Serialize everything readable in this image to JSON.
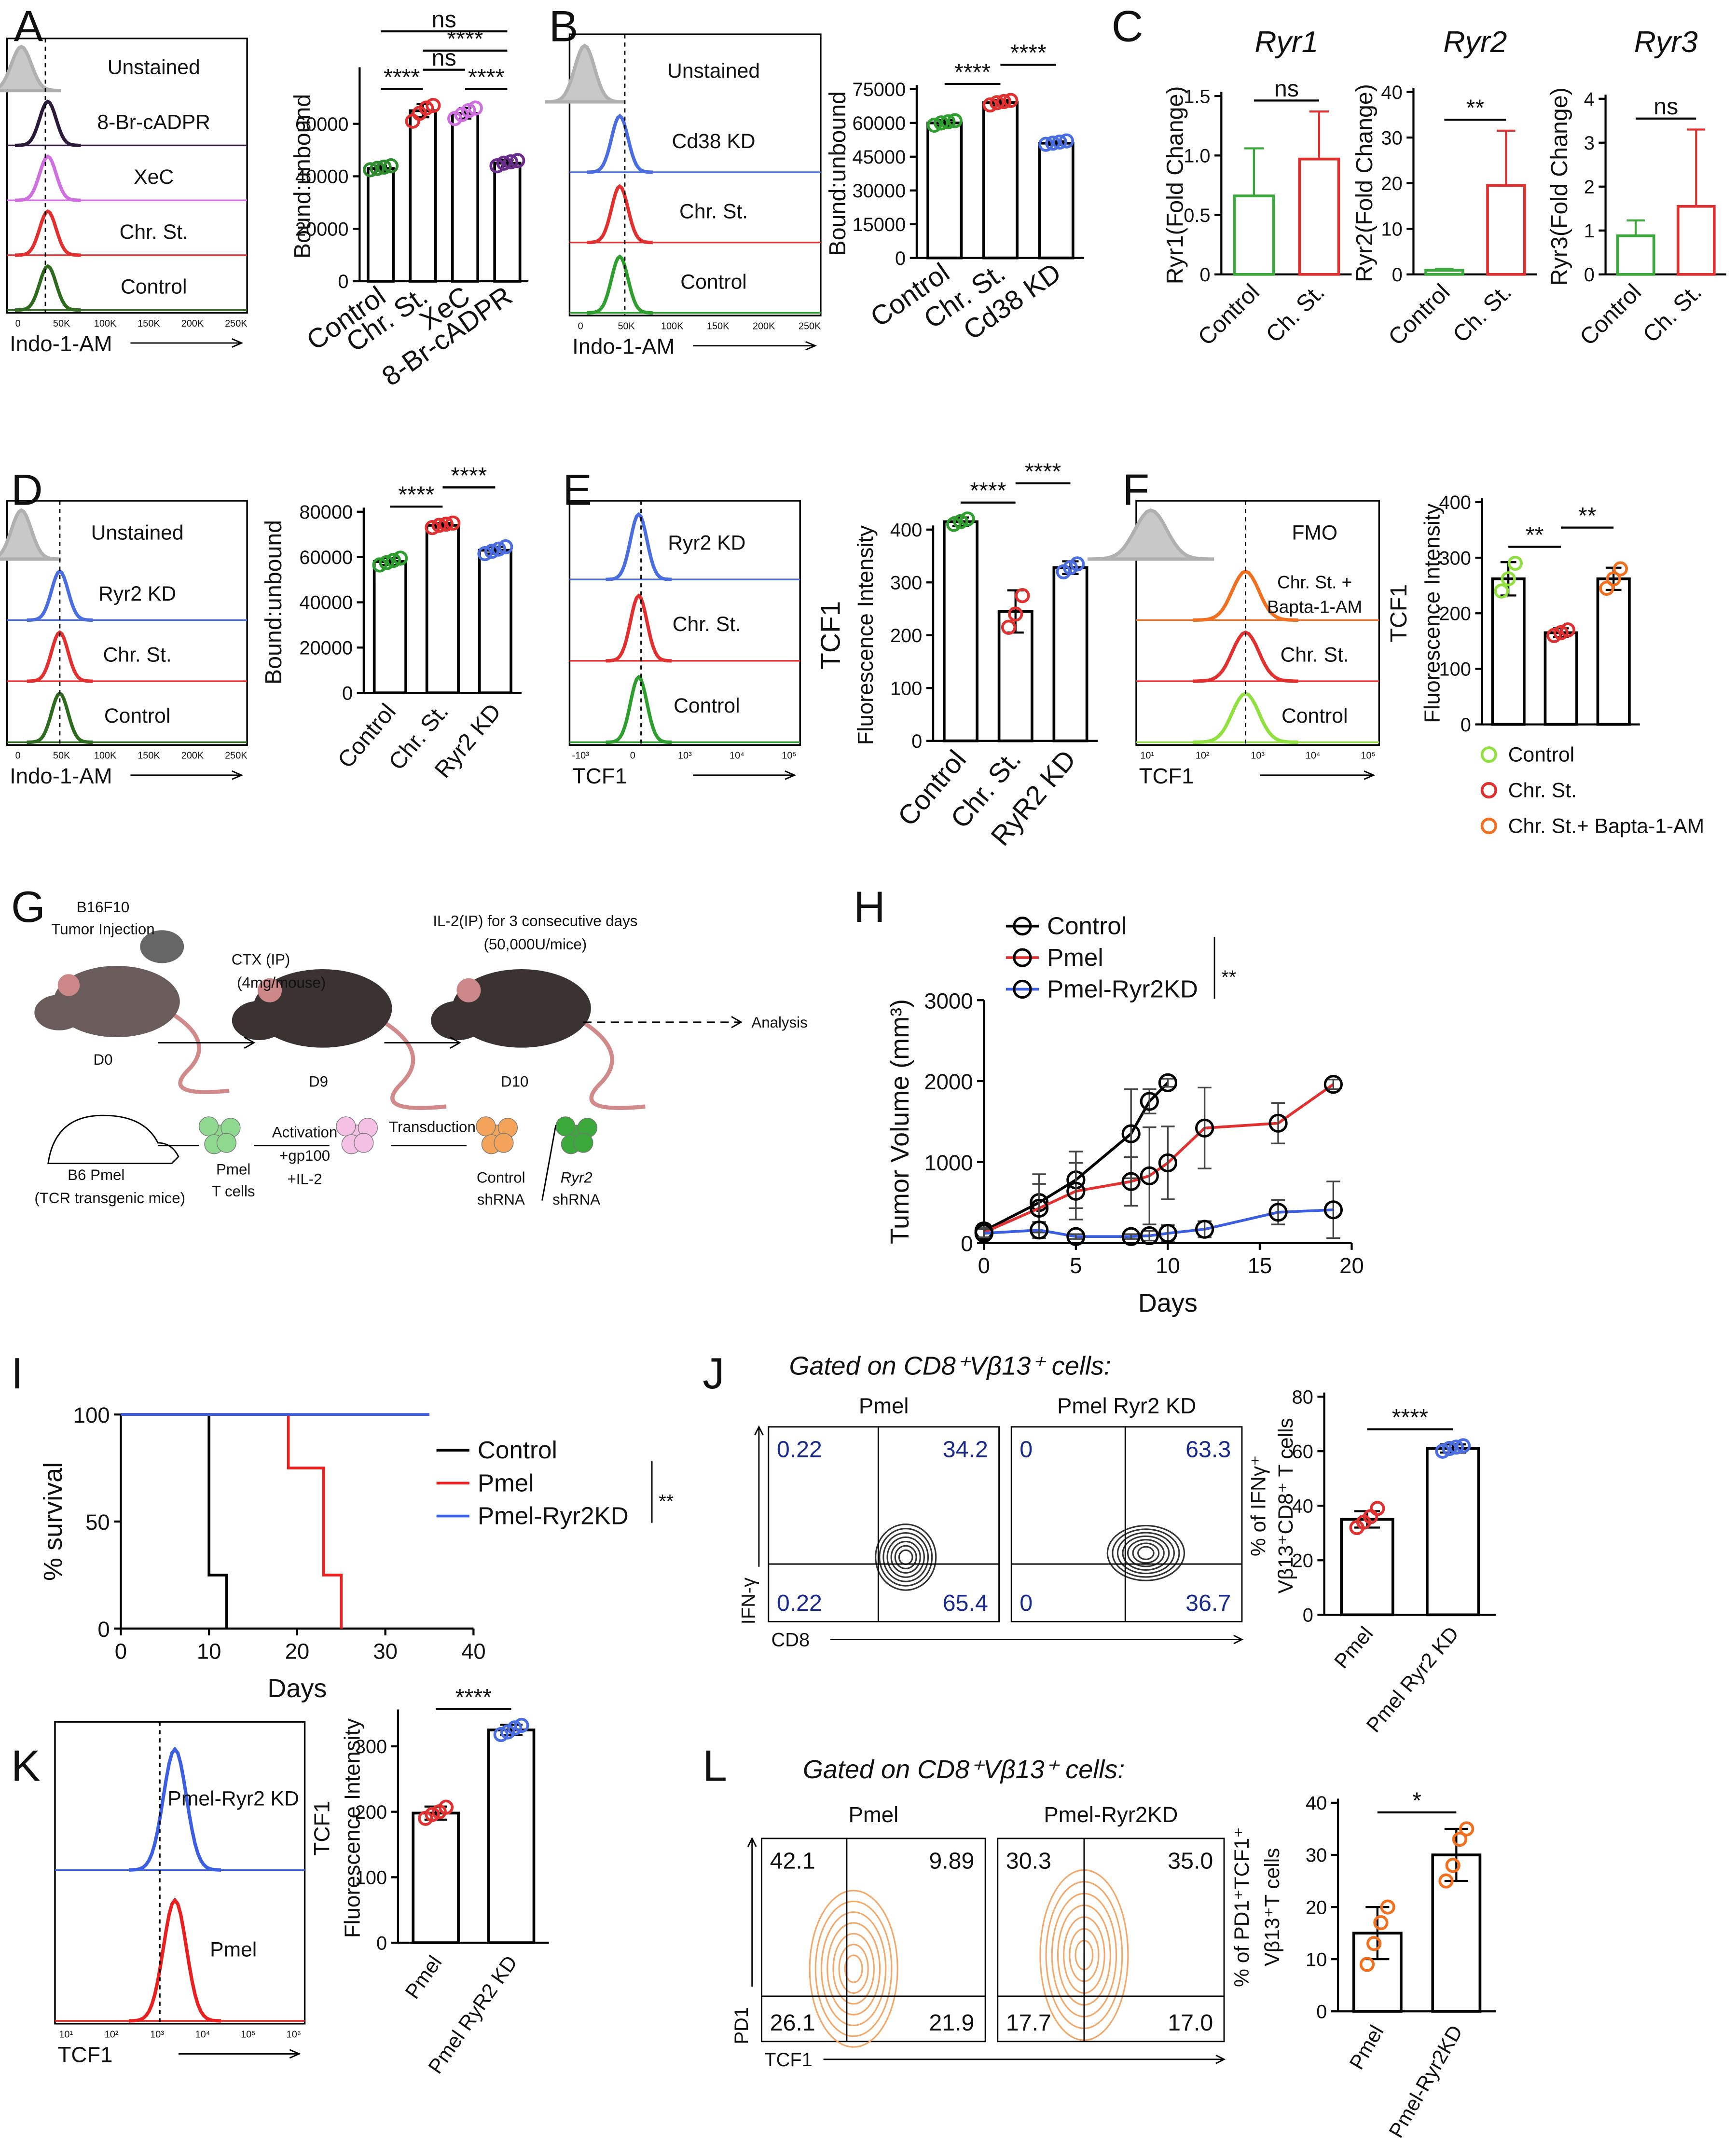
{
  "chart_data": [
    {
      "type": "flow-histogram",
      "panel": "A",
      "labels": [
        "Unstained",
        "8-Br-cADPR",
        "XeC",
        "Chr. St.",
        "Control"
      ],
      "colors": [
        "#b0b0b0",
        "#2b1a3a",
        "#d070e0",
        "#e03030",
        "#2e6b1e"
      ],
      "first_filled": true,
      "xlabel": "Indo-1-AM",
      "xtick_labels": [
        "0",
        "50K",
        "100K",
        "150K",
        "200K",
        "250K"
      ]
    },
    {
      "type": "bar",
      "ylabel": "Bound:unbound",
      "categories": [
        "Control",
        "Chr. St.",
        "XeC",
        "8-Br-cADPR"
      ],
      "values": [
        43000,
        65000,
        64000,
        45000
      ],
      "errors": [
        1000,
        2500,
        2000,
        1200
      ],
      "points": [
        [
          42500,
          43000,
          43500,
          44000
        ],
        [
          61000,
          64000,
          66000,
          67000
        ],
        [
          62000,
          63500,
          65000,
          66000
        ],
        [
          44000,
          45000,
          45500,
          46000
        ]
      ],
      "colors": [
        "#2e8b2e",
        "#e03030",
        "#d070e0",
        "#6a2c8a"
      ],
      "bar_edge": "#000000",
      "ylim": [
        0,
        80000
      ],
      "yticks": [
        0,
        20000,
        40000,
        60000
      ],
      "significance": [
        {
          "label": "****",
          "pair": [
            0,
            1
          ]
        },
        {
          "label": "****",
          "pair": [
            2,
            3
          ]
        },
        {
          "label": "ns",
          "pair": [
            1,
            2
          ]
        },
        {
          "label": "****",
          "pair": [
            1,
            3
          ]
        },
        {
          "label": "ns",
          "pair": [
            0,
            3
          ]
        }
      ]
    },
    {
      "type": "flow-histogram",
      "panel": "B",
      "labels": [
        "Unstained",
        "Cd38 KD",
        "Chr. St.",
        "Control"
      ],
      "colors": [
        "#b0b0b0",
        "#4a6ee0",
        "#e03030",
        "#2e9e2e"
      ],
      "first_filled": true,
      "xlabel": "Indo-1-AM",
      "xtick_labels": [
        "0",
        "50K",
        "100K",
        "150K",
        "200K",
        "250K"
      ]
    },
    {
      "type": "bar",
      "ylabel": "Bound:unbound",
      "categories": [
        "Control",
        "Chr. St.",
        "Cd38 KD"
      ],
      "values": [
        60000,
        69000,
        51000
      ],
      "errors": [
        1200,
        1200,
        800
      ],
      "points": [
        [
          59000,
          60000,
          60500,
          61000
        ],
        [
          68000,
          69000,
          69500,
          70000
        ],
        [
          50500,
          51000,
          51500,
          52000
        ]
      ],
      "colors": [
        "#2e9e2e",
        "#e03030",
        "#4a6ee0"
      ],
      "bar_edge": "#000000",
      "ylim": [
        0,
        75000
      ],
      "yticks": [
        0,
        15000,
        30000,
        45000,
        60000,
        75000
      ],
      "significance": [
        {
          "label": "****",
          "pair": [
            0,
            1
          ]
        },
        {
          "label": "****",
          "pair": [
            1,
            2
          ]
        }
      ]
    },
    {
      "type": "bar",
      "panel": "C",
      "title": "Ryr1",
      "ylabel": "Ryr1(Fold Change)",
      "categories": [
        "Control",
        "Ch. St."
      ],
      "values": [
        0.66,
        0.97
      ],
      "errors": [
        0.4,
        0.4
      ],
      "colors": [
        "#3aa83a",
        "#e03030"
      ],
      "error_bars": "upper",
      "ylim": [
        0,
        1.5
      ],
      "yticks": [
        0,
        0.5,
        {
          "value": 1,
          "label": "1.0"
        },
        1.5
      ],
      "significance": [
        {
          "label": "ns",
          "pair": [
            0,
            1
          ]
        }
      ]
    },
    {
      "type": "bar",
      "title": "Ryr2",
      "ylabel": "Ryr2(Fold Change)",
      "categories": [
        "Control",
        "Ch. St."
      ],
      "values": [
        0.9,
        19.5
      ],
      "errors": [
        0.3,
        12
      ],
      "colors": [
        "#3aa83a",
        "#e03030"
      ],
      "error_bars": "upper",
      "ylim": [
        0,
        40
      ],
      "yticks": [
        0,
        10,
        20,
        30,
        40
      ],
      "significance": [
        {
          "label": "**",
          "pair": [
            0,
            1
          ]
        }
      ]
    },
    {
      "type": "bar",
      "title": "Ryr3",
      "ylabel": "Ryr3(Fold Change)",
      "categories": [
        "Control",
        "Ch. St."
      ],
      "values": [
        0.88,
        1.55
      ],
      "errors": [
        0.35,
        1.75
      ],
      "colors": [
        "#3aa83a",
        "#e03030"
      ],
      "error_bars": "upper",
      "ylim": [
        0,
        4
      ],
      "yticks": [
        0,
        1,
        2,
        3,
        4
      ],
      "significance": [
        {
          "label": "ns",
          "pair": [
            0,
            1
          ]
        }
      ]
    },
    {
      "type": "flow-histogram",
      "panel": "D",
      "labels": [
        "Unstained",
        "Ryr2 KD",
        "Chr. St.",
        "Control"
      ],
      "colors": [
        "#b0b0b0",
        "#4a6ee0",
        "#e03030",
        "#2e6b1e"
      ],
      "first_filled": true,
      "xlabel": "Indo-1-AM",
      "xtick_labels": [
        "0",
        "50K",
        "100K",
        "150K",
        "200K",
        "250K"
      ]
    },
    {
      "type": "bar",
      "ylabel": "Bound:unbound",
      "categories": [
        "Control",
        "Chr. St.",
        "Ryr2 KD"
      ],
      "values": [
        58000,
        74000,
        63000
      ],
      "errors": [
        1500,
        1000,
        1500
      ],
      "points": [
        [
          56500,
          57500,
          58500,
          59500
        ],
        [
          73000,
          74000,
          74500,
          75000
        ],
        [
          61500,
          62500,
          63500,
          64500
        ]
      ],
      "colors": [
        "#2e9e2e",
        "#e03030",
        "#4a6ee0"
      ],
      "bar_edge": "#000000",
      "ylim": [
        0,
        80000
      ],
      "yticks": [
        0,
        20000,
        40000,
        60000,
        80000
      ],
      "significance": [
        {
          "label": "****",
          "pair": [
            0,
            1
          ]
        },
        {
          "label": "****",
          "pair": [
            1,
            2
          ]
        }
      ]
    },
    {
      "type": "flow-histogram",
      "panel": "E",
      "labels": [
        "Ryr2 KD",
        "Chr. St.",
        "Control"
      ],
      "colors": [
        "#4a6ee0",
        "#e03030",
        "#2e9e2e"
      ],
      "first_filled": false,
      "xlabel": "TCF1",
      "xtick_labels": [
        "-10³",
        "0",
        "10³",
        "10⁴",
        "10⁵"
      ]
    },
    {
      "type": "bar",
      "ylabel": [
        "TCF1",
        "Fluorescence Intensity"
      ],
      "categories": [
        "Control",
        "Chr. St.",
        "RyR2 KD"
      ],
      "values": [
        415,
        245,
        328
      ],
      "errors": [
        8,
        40,
        12
      ],
      "points": [
        [
          410,
          415,
          420
        ],
        [
          215,
          240,
          275
        ],
        [
          320,
          328,
          335
        ]
      ],
      "colors": [
        "#2e9e2e",
        "#e03030",
        "#4a6ee0"
      ],
      "bar_edge": "#000000",
      "ylim": [
        0,
        400
      ],
      "yticks": [
        0,
        100,
        200,
        300,
        400
      ],
      "significance": [
        {
          "label": "****",
          "pair": [
            0,
            1
          ]
        },
        {
          "label": "****",
          "pair": [
            1,
            2
          ]
        }
      ]
    },
    {
      "type": "flow-histogram",
      "panel": "F",
      "labels": [
        "FMO",
        [
          "Chr. St. +",
          "Bapta-1-AM"
        ],
        "Chr. St.",
        "Control"
      ],
      "colors": [
        "#b0b0b0",
        "#f07020",
        "#e03030",
        "#90e040"
      ],
      "first_filled": true,
      "xlabel": "TCF1",
      "xtick_labels": [
        "10¹",
        "10²",
        "10³",
        "10⁴",
        "10⁵"
      ]
    },
    {
      "type": "bar",
      "ylabel": [
        "TCF1",
        "Fluorescence Intensity"
      ],
      "legend": [
        "Control",
        "Chr. St.",
        "Chr. St.+ Bapta-1-AM"
      ],
      "values": [
        262,
        165,
        262
      ],
      "errors": [
        30,
        8,
        20
      ],
      "points": [
        [
          240,
          262,
          290
        ],
        [
          160,
          165,
          170
        ],
        [
          245,
          262,
          280
        ]
      ],
      "colors": [
        "#90e040",
        "#e03030",
        "#f07020"
      ],
      "bar_edge": "#000000",
      "ylim": [
        0,
        400
      ],
      "yticks": [
        0,
        100,
        200,
        300,
        400
      ],
      "significance": [
        {
          "label": "**",
          "pair": [
            0,
            1
          ]
        },
        {
          "label": "**",
          "pair": [
            1,
            2
          ]
        }
      ]
    },
    {
      "type": "line",
      "panel": "H",
      "ylabel": "Tumor Volume (mm³)",
      "xlabel": "Days",
      "xlim": [
        0,
        20
      ],
      "xticks": [
        0,
        5,
        10,
        15,
        20
      ],
      "ylim": [
        0,
        3000
      ],
      "yticks": [
        0,
        1000,
        2000,
        3000
      ],
      "legend_note": "**",
      "series": [
        {
          "name": "Control",
          "color": "#000000",
          "x": [
            0,
            3,
            5,
            8,
            9,
            10
          ],
          "values": [
            150,
            500,
            780,
            1350,
            1750,
            1980
          ],
          "errors": [
            80,
            350,
            350,
            550,
            150,
            50
          ]
        },
        {
          "name": "Pmel",
          "color": "#e03030",
          "x": [
            0,
            3,
            5,
            8,
            9,
            10,
            12,
            16,
            19
          ],
          "values": [
            130,
            430,
            640,
            760,
            830,
            990,
            1420,
            1480,
            1960
          ],
          "errors": [
            60,
            300,
            350,
            300,
            600,
            450,
            500,
            250,
            60
          ]
        },
        {
          "name": "Pmel-Ryr2KD",
          "color": "#3b5fe0",
          "x": [
            0,
            3,
            5,
            8,
            9,
            10,
            12,
            16,
            19
          ],
          "values": [
            120,
            160,
            80,
            80,
            90,
            120,
            170,
            380,
            410
          ],
          "errors": [
            50,
            100,
            30,
            30,
            60,
            100,
            100,
            150,
            350
          ]
        }
      ]
    },
    {
      "type": "survival",
      "panel": "I",
      "ylabel": "% survival",
      "xlabel": "Days",
      "xlim": [
        0,
        40
      ],
      "xticks": [
        0,
        10,
        20,
        30,
        40
      ],
      "ylim": [
        0,
        100
      ],
      "yticks": [
        0,
        50,
        100
      ],
      "legend_note": "**",
      "series": [
        {
          "name": "Control",
          "color": "#000000",
          "x": [
            0,
            10,
            12
          ],
          "values": [
            100,
            25,
            0
          ]
        },
        {
          "name": "Pmel",
          "color": "#e82020",
          "x": [
            0,
            19,
            23,
            25
          ],
          "values": [
            100,
            75,
            25,
            0
          ]
        },
        {
          "name": "Pmel-Ryr2KD",
          "color": "#3b5fe0",
          "x": [
            0,
            35
          ],
          "values": [
            100,
            100
          ]
        }
      ]
    },
    {
      "type": "flow-quadrant",
      "panel": "J",
      "heading": "Gated on CD8⁺Vβ13⁺ cells:",
      "ylabel": "IFN-γ",
      "xlabel": "CD8",
      "color": "#333333",
      "quadrant_color": "#1a2a8a",
      "plots": [
        {
          "title": "Pmel",
          "quadrants": [
            "0.22",
            "34.2",
            "0.22",
            "65.4"
          ]
        },
        {
          "title": "Pmel Ryr2 KD",
          "quadrants": [
            "0",
            "63.3",
            "0",
            "36.7"
          ]
        }
      ]
    },
    {
      "type": "bar",
      "ylabel": [
        "% of IFNγ⁺",
        "Vβ13⁺CD8⁺ T cells"
      ],
      "categories": [
        "Pmel",
        "Pmel Ryr2 KD"
      ],
      "values": [
        35,
        61
      ],
      "errors": [
        3,
        1.5
      ],
      "points": [
        [
          32,
          34,
          36,
          39
        ],
        [
          60,
          61,
          61.5,
          62
        ]
      ],
      "colors": [
        "#e03030",
        "#4a6ee0"
      ],
      "bar_edge": "#000000",
      "ylim": [
        0,
        80
      ],
      "yticks": [
        0,
        20,
        40,
        60,
        80
      ],
      "significance": [
        {
          "label": "****",
          "pair": [
            0,
            1
          ]
        }
      ]
    },
    {
      "type": "flow-histogram",
      "panel": "K",
      "labels": [
        "Pmel-Ryr2 KD",
        "Pmel"
      ],
      "colors": [
        "#3b5fe0",
        "#e82020"
      ],
      "first_filled": false,
      "xlabel": "TCF1",
      "xtick_labels": [
        "10¹",
        "10²",
        "10³",
        "10⁴",
        "10⁵",
        "10⁶"
      ]
    },
    {
      "type": "bar",
      "ylabel": [
        "TCF1",
        "Fluorescence Intensity"
      ],
      "categories": [
        "Pmel",
        "Pmel RyR2 KD"
      ],
      "values": [
        198,
        325
      ],
      "errors": [
        10,
        8
      ],
      "points": [
        [
          190,
          196,
          200,
          207
        ],
        [
          318,
          322,
          328,
          332
        ]
      ],
      "colors": [
        "#e03030",
        "#4a6ee0"
      ],
      "bar_edge": "#000000",
      "ylim": [
        0,
        350
      ],
      "yticks": [
        0,
        100,
        200,
        300
      ],
      "significance": [
        {
          "label": "****",
          "pair": [
            0,
            1
          ]
        }
      ]
    },
    {
      "type": "flow-quadrant",
      "panel": "L",
      "heading": "Gated on CD8⁺Vβ13⁺ cells:",
      "ylabel": "PD1",
      "xlabel": "TCF1",
      "color": "#f2a86a",
      "quadrant_color": "#111111",
      "plots": [
        {
          "title": "Pmel",
          "quadrants": [
            "42.1",
            "9.89",
            "26.1",
            "21.9"
          ]
        },
        {
          "title": "Pmel-Ryr2KD",
          "quadrants": [
            "30.3",
            "35.0",
            "17.7",
            "17.0"
          ]
        }
      ]
    },
    {
      "type": "bar",
      "ylabel": [
        "% of PD1⁺TCF1⁺",
        "Vβ13⁺T cells"
      ],
      "categories": [
        "Pmel",
        "Pmel-Ryr2KD"
      ],
      "values": [
        15,
        30
      ],
      "errors": [
        5,
        5
      ],
      "points": [
        [
          9,
          13,
          17,
          20
        ],
        [
          25,
          28,
          33,
          35
        ]
      ],
      "colors": [
        "#f07020",
        "#f07020"
      ],
      "bar_edge": "#000000",
      "ylim": [
        0,
        40
      ],
      "yticks": [
        0,
        10,
        20,
        30,
        40
      ],
      "significance": [
        {
          "label": "*",
          "pair": [
            0,
            1
          ]
        }
      ]
    }
  ],
  "diagram": {
    "panel": "G",
    "texts": [
      "B16F10",
      "Tumor Injection",
      "CTX (IP)",
      "(4mg/mouse)",
      "IL-2(IP) for 3 consecutive days",
      "(50,000U/mice)",
      "Analysis",
      "D0",
      "D9",
      "D10",
      "B6 Pmel",
      "(TCR transgenic mice)",
      "Pmel",
      "T cells",
      "Activation",
      "+gp100",
      "+IL-2",
      "Transduction",
      "Control",
      "shRNA",
      "Ryr2",
      "shRNA"
    ]
  }
}
